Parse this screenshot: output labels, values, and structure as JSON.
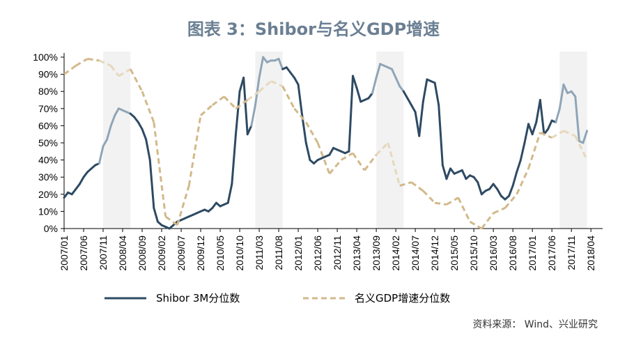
{
  "chart_title": "图表 3：Shibor与名义GDP增速",
  "source": "资料来源：   Wind、兴业研究",
  "colors": {
    "shibor": "#2e4a63",
    "shibor_light": "#8fa5b7",
    "gdp": "#d2b98a",
    "gdp_light": "#e6d8bc",
    "shade": "#f2f2f2",
    "title": "#6b7f93"
  },
  "chart_data": {
    "type": "line",
    "title": "图表 3：Shibor与名义GDP增速",
    "ylim": [
      0,
      100
    ],
    "y_ticks": [
      "0%",
      "10%",
      "20%",
      "30%",
      "40%",
      "50%",
      "60%",
      "70%",
      "80%",
      "90%",
      "100%"
    ],
    "x_range": [
      "2007/01",
      "2018/07"
    ],
    "x_ticks": [
      "2007/01",
      "2007/06",
      "2007/11",
      "2008/04",
      "2008/09",
      "2009/02",
      "2009/07",
      "2009/12",
      "2010/05",
      "2010/10",
      "2011/03",
      "2011/08",
      "2012/01",
      "2012/06",
      "2012/11",
      "2013/04",
      "2013/09",
      "2014/02",
      "2014/07",
      "2014/12",
      "2015/05",
      "2015/10",
      "2016/03",
      "2016/08",
      "2017/01",
      "2017/06",
      "2017/11",
      "2018/04"
    ],
    "shaded_periods": [
      [
        "2007/11",
        "2008/06"
      ],
      [
        "2011/02",
        "2011/09"
      ],
      [
        "2013/09",
        "2014/04"
      ],
      [
        "2017/08",
        "2018/03"
      ]
    ],
    "legend_position": "bottom",
    "series": [
      {
        "name": "Shibor 3M分位数",
        "style": "solid",
        "points": [
          [
            "2007/01",
            18
          ],
          [
            "2007/02",
            21
          ],
          [
            "2007/03",
            20
          ],
          [
            "2007/04",
            23
          ],
          [
            "2007/05",
            26
          ],
          [
            "2007/06",
            30
          ],
          [
            "2007/07",
            33
          ],
          [
            "2007/08",
            35
          ],
          [
            "2007/09",
            37
          ],
          [
            "2007/10",
            38
          ],
          [
            "2007/11",
            48
          ],
          [
            "2007/12",
            52
          ],
          [
            "2008/01",
            60
          ],
          [
            "2008/02",
            66
          ],
          [
            "2008/03",
            70
          ],
          [
            "2008/04",
            69
          ],
          [
            "2008/05",
            68
          ],
          [
            "2008/06",
            67
          ],
          [
            "2008/07",
            65
          ],
          [
            "2008/08",
            62
          ],
          [
            "2008/09",
            58
          ],
          [
            "2008/10",
            52
          ],
          [
            "2008/11",
            40
          ],
          [
            "2008/12",
            12
          ],
          [
            "2009/01",
            4
          ],
          [
            "2009/02",
            2
          ],
          [
            "2009/03",
            1
          ],
          [
            "2009/04",
            0
          ],
          [
            "2009/05",
            2
          ],
          [
            "2009/06",
            4
          ],
          [
            "2009/07",
            5
          ],
          [
            "2009/08",
            6
          ],
          [
            "2009/09",
            7
          ],
          [
            "2009/10",
            8
          ],
          [
            "2009/11",
            9
          ],
          [
            "2009/12",
            10
          ],
          [
            "2010/01",
            11
          ],
          [
            "2010/02",
            10
          ],
          [
            "2010/03",
            12
          ],
          [
            "2010/04",
            15
          ],
          [
            "2010/05",
            13
          ],
          [
            "2010/06",
            14
          ],
          [
            "2010/07",
            15
          ],
          [
            "2010/08",
            26
          ],
          [
            "2010/09",
            55
          ],
          [
            "2010/10",
            80
          ],
          [
            "2010/11",
            88
          ],
          [
            "2010/12",
            55
          ],
          [
            "2011/01",
            60
          ],
          [
            "2011/02",
            72
          ],
          [
            "2011/03",
            88
          ],
          [
            "2011/04",
            100
          ],
          [
            "2011/05",
            97
          ],
          [
            "2011/06",
            98
          ],
          [
            "2011/07",
            98
          ],
          [
            "2011/08",
            99
          ],
          [
            "2011/09",
            93
          ],
          [
            "2011/10",
            94
          ],
          [
            "2011/11",
            91
          ],
          [
            "2011/12",
            88
          ],
          [
            "2012/01",
            84
          ],
          [
            "2012/02",
            66
          ],
          [
            "2012/03",
            50
          ],
          [
            "2012/04",
            40
          ],
          [
            "2012/05",
            38
          ],
          [
            "2012/06",
            40
          ],
          [
            "2012/07",
            41
          ],
          [
            "2012/08",
            42
          ],
          [
            "2012/09",
            43
          ],
          [
            "2012/10",
            47
          ],
          [
            "2012/11",
            46
          ],
          [
            "2012/12",
            45
          ],
          [
            "2013/01",
            44
          ],
          [
            "2013/02",
            45
          ],
          [
            "2013/03",
            89
          ],
          [
            "2013/04",
            82
          ],
          [
            "2013/05",
            74
          ],
          [
            "2013/06",
            75
          ],
          [
            "2013/07",
            76
          ],
          [
            "2013/08",
            79
          ],
          [
            "2013/09",
            88
          ],
          [
            "2013/10",
            96
          ],
          [
            "2013/11",
            95
          ],
          [
            "2013/12",
            94
          ],
          [
            "2014/01",
            93
          ],
          [
            "2014/02",
            88
          ],
          [
            "2014/03",
            83
          ],
          [
            "2014/04",
            80
          ],
          [
            "2014/05",
            76
          ],
          [
            "2014/06",
            72
          ],
          [
            "2014/07",
            68
          ],
          [
            "2014/08",
            54
          ],
          [
            "2014/09",
            74
          ],
          [
            "2014/10",
            87
          ],
          [
            "2014/11",
            86
          ],
          [
            "2014/12",
            85
          ],
          [
            "2015/01",
            72
          ],
          [
            "2015/02",
            37
          ],
          [
            "2015/03",
            29
          ],
          [
            "2015/04",
            35
          ],
          [
            "2015/05",
            32
          ],
          [
            "2015/06",
            33
          ],
          [
            "2015/07",
            34
          ],
          [
            "2015/08",
            29
          ],
          [
            "2015/09",
            31
          ],
          [
            "2015/10",
            30
          ],
          [
            "2015/11",
            27
          ],
          [
            "2015/12",
            20
          ],
          [
            "2016/01",
            22
          ],
          [
            "2016/02",
            23
          ],
          [
            "2016/03",
            26
          ],
          [
            "2016/04",
            23
          ],
          [
            "2016/05",
            19
          ],
          [
            "2016/06",
            17
          ],
          [
            "2016/07",
            19
          ],
          [
            "2016/08",
            25
          ],
          [
            "2016/09",
            33
          ],
          [
            "2016/10",
            40
          ],
          [
            "2016/11",
            50
          ],
          [
            "2016/12",
            61
          ],
          [
            "2017/01",
            55
          ],
          [
            "2017/02",
            62
          ],
          [
            "2017/03",
            75
          ],
          [
            "2017/04",
            55
          ],
          [
            "2017/05",
            58
          ],
          [
            "2017/06",
            63
          ],
          [
            "2017/07",
            62
          ],
          [
            "2017/08",
            70
          ],
          [
            "2017/09",
            84
          ],
          [
            "2017/10",
            79
          ],
          [
            "2017/11",
            80
          ],
          [
            "2017/12",
            77
          ],
          [
            "2018/01",
            51
          ],
          [
            "2018/02",
            50
          ],
          [
            "2018/03",
            57
          ]
        ]
      },
      {
        "name": "名义GDP增速分位数",
        "style": "dashed",
        "points": [
          [
            "2007/01",
            90
          ],
          [
            "2007/04",
            95
          ],
          [
            "2007/07",
            99
          ],
          [
            "2007/10",
            98
          ],
          [
            "2008/01",
            95
          ],
          [
            "2008/03",
            89
          ],
          [
            "2008/06",
            93
          ],
          [
            "2008/09",
            80
          ],
          [
            "2008/12",
            62
          ],
          [
            "2009/03",
            7
          ],
          [
            "2009/06",
            2
          ],
          [
            "2009/09",
            25
          ],
          [
            "2009/12",
            66
          ],
          [
            "2010/03",
            72
          ],
          [
            "2010/06",
            77
          ],
          [
            "2010/09",
            70
          ],
          [
            "2010/12",
            75
          ],
          [
            "2011/03",
            80
          ],
          [
            "2011/06",
            86
          ],
          [
            "2011/09",
            83
          ],
          [
            "2011/12",
            70
          ],
          [
            "2012/03",
            62
          ],
          [
            "2012/06",
            50
          ],
          [
            "2012/09",
            32
          ],
          [
            "2012/12",
            40
          ],
          [
            "2013/03",
            44
          ],
          [
            "2013/06",
            34
          ],
          [
            "2013/09",
            43
          ],
          [
            "2013/12",
            50
          ],
          [
            "2014/03",
            25
          ],
          [
            "2014/06",
            27
          ],
          [
            "2014/09",
            22
          ],
          [
            "2014/12",
            15
          ],
          [
            "2015/03",
            14
          ],
          [
            "2015/06",
            18
          ],
          [
            "2015/09",
            4
          ],
          [
            "2015/12",
            0
          ],
          [
            "2016/03",
            9
          ],
          [
            "2016/06",
            12
          ],
          [
            "2016/09",
            20
          ],
          [
            "2016/12",
            35
          ],
          [
            "2017/03",
            56
          ],
          [
            "2017/06",
            53
          ],
          [
            "2017/09",
            57
          ],
          [
            "2017/12",
            54
          ],
          [
            "2018/03",
            40
          ]
        ]
      }
    ]
  }
}
